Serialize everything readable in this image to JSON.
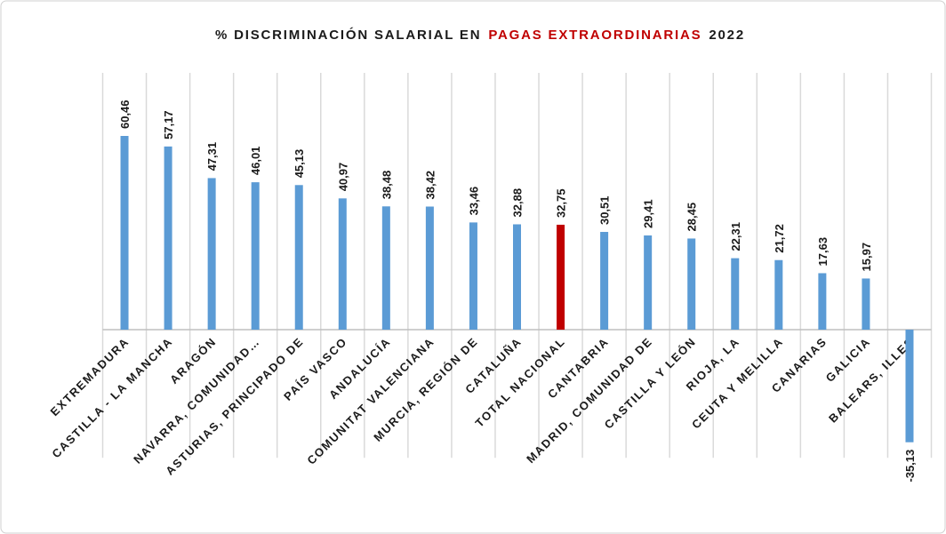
{
  "chart_data": {
    "type": "bar",
    "title": [
      "% DISCRIMINACIÓN SALARIAL EN",
      "PAGAS EXTRAORDINARIAS",
      "2022"
    ],
    "title_colors": [
      "#1a1a1a",
      "#c00000",
      "#1a1a1a"
    ],
    "categories": [
      "EXTREMADURA",
      "CASTILLA - LA MANCHA",
      "ARAGÓN",
      "NAVARRA, COMUNIDAD…",
      "ASTURIAS, PRINCIPADO DE",
      "PAÍS VASCO",
      "ANDALUCÍA",
      "COMUNITAT VALENCIANA",
      "MURCIA, REGIÓN DE",
      "CATALUÑA",
      "TOTAL NACIONAL",
      "CANTABRIA",
      "MADRID, COMUNIDAD DE",
      "CASTILLA Y LEÓN",
      "RIOJA, LA",
      "CEUTA Y MELILLA",
      "CANARIAS",
      "GALICIA",
      "BALEARS, ILLES"
    ],
    "values": [
      60.46,
      57.17,
      47.31,
      46.01,
      45.13,
      40.97,
      38.48,
      38.42,
      33.46,
      32.88,
      32.75,
      30.51,
      29.41,
      28.45,
      22.31,
      21.72,
      17.63,
      15.97,
      -35.13
    ],
    "value_labels": [
      "60,46",
      "57,17",
      "47,31",
      "46,01",
      "45,13",
      "40,97",
      "38,48",
      "38,42",
      "33,46",
      "32,88",
      "32,75",
      "30,51",
      "29,41",
      "28,45",
      "22,31",
      "21,72",
      "17,63",
      "15,97",
      "-35,13"
    ],
    "colors": [
      "#5b9bd5",
      "#5b9bd5",
      "#5b9bd5",
      "#5b9bd5",
      "#5b9bd5",
      "#5b9bd5",
      "#5b9bd5",
      "#5b9bd5",
      "#5b9bd5",
      "#5b9bd5",
      "#c00000",
      "#5b9bd5",
      "#5b9bd5",
      "#5b9bd5",
      "#5b9bd5",
      "#5b9bd5",
      "#5b9bd5",
      "#5b9bd5",
      "#5b9bd5"
    ],
    "ylim": [
      -40,
      70
    ]
  }
}
